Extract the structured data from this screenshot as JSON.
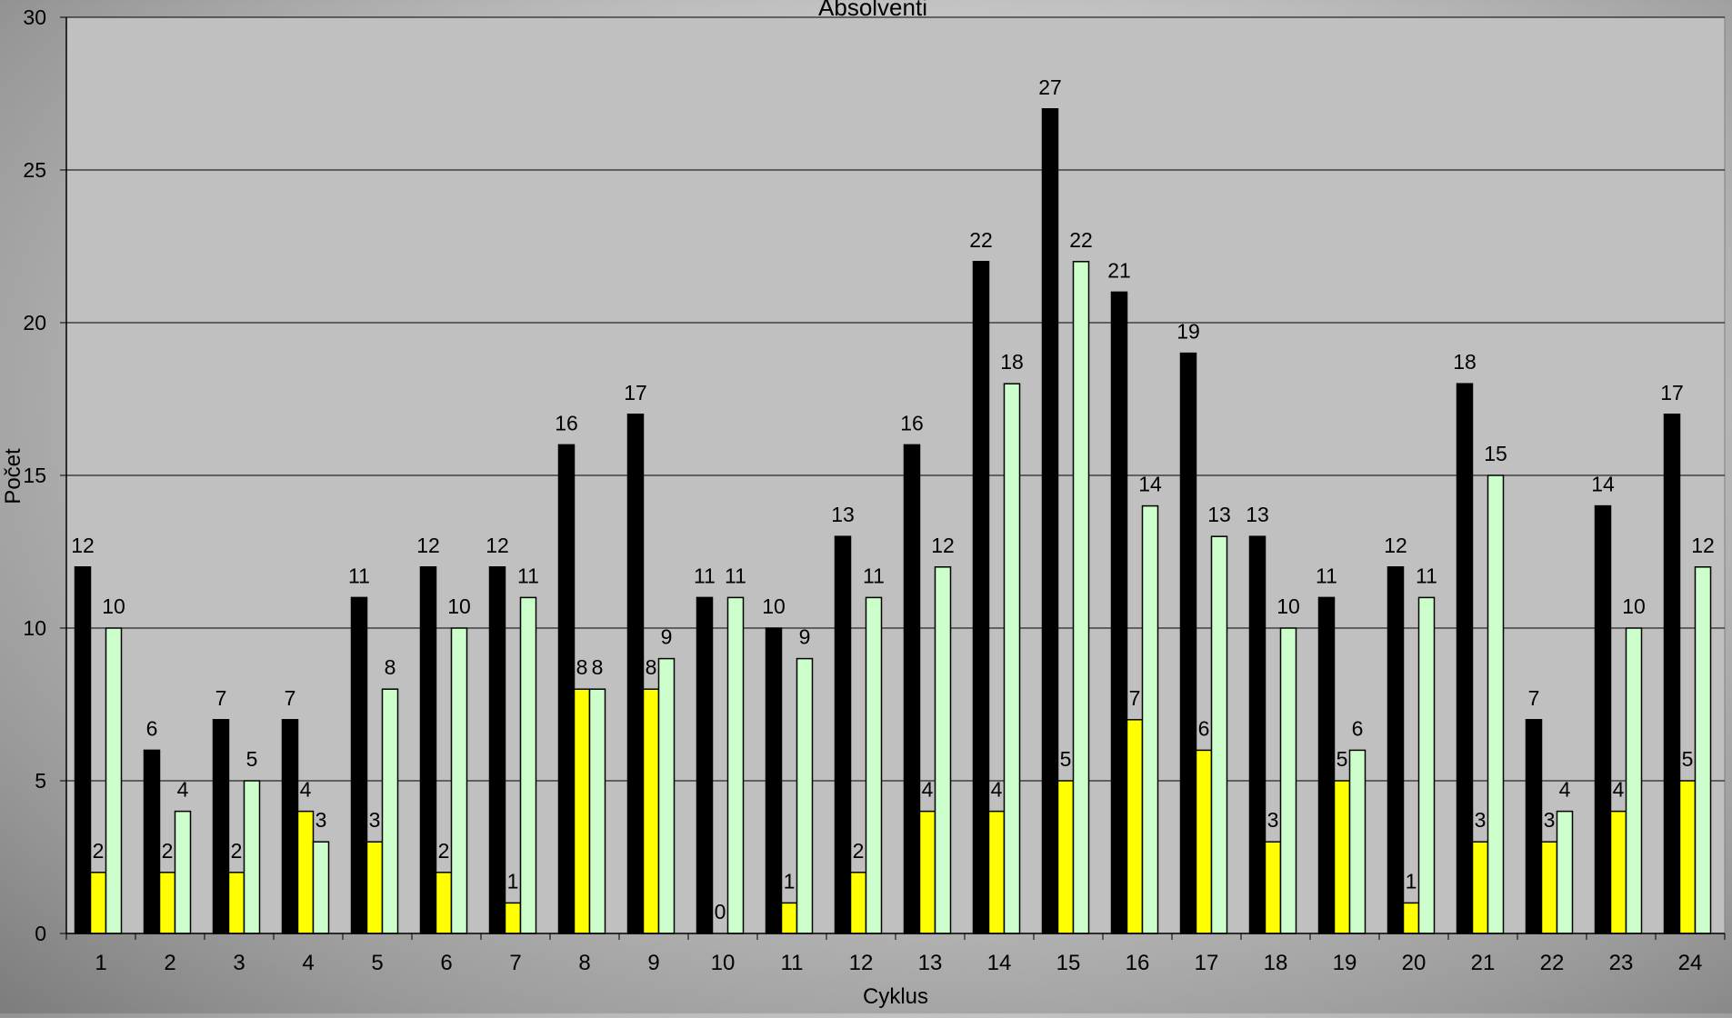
{
  "chart_data": {
    "type": "bar",
    "title": "Absolventi",
    "xlabel": "Cyklus",
    "ylabel": "Počet",
    "ylim": [
      0,
      30
    ],
    "yticks": [
      0,
      5,
      10,
      15,
      20,
      25,
      30
    ],
    "grid": true,
    "legend": "none",
    "categories": [
      "1",
      "2",
      "3",
      "4",
      "5",
      "6",
      "7",
      "8",
      "9",
      "10",
      "11",
      "12",
      "13",
      "14",
      "15",
      "16",
      "17",
      "18",
      "19",
      "20",
      "21",
      "22",
      "23",
      "24"
    ],
    "series": [
      {
        "color": "#000000",
        "values": [
          12,
          6,
          7,
          7,
          11,
          12,
          12,
          16,
          17,
          11,
          10,
          13,
          16,
          22,
          27,
          21,
          19,
          13,
          11,
          12,
          18,
          7,
          14,
          17
        ]
      },
      {
        "color": "#ffff00",
        "values": [
          2,
          2,
          2,
          4,
          3,
          2,
          1,
          8,
          8,
          0,
          1,
          2,
          4,
          4,
          5,
          7,
          6,
          3,
          5,
          1,
          3,
          3,
          4,
          5
        ]
      },
      {
        "color": "#ccffcc",
        "values": [
          10,
          4,
          5,
          3,
          8,
          10,
          11,
          8,
          9,
          11,
          9,
          11,
          12,
          18,
          22,
          14,
          13,
          10,
          6,
          11,
          15,
          4,
          10,
          12
        ]
      }
    ],
    "plot_background": "#c0c0c0",
    "gridline_color": "#000000"
  }
}
